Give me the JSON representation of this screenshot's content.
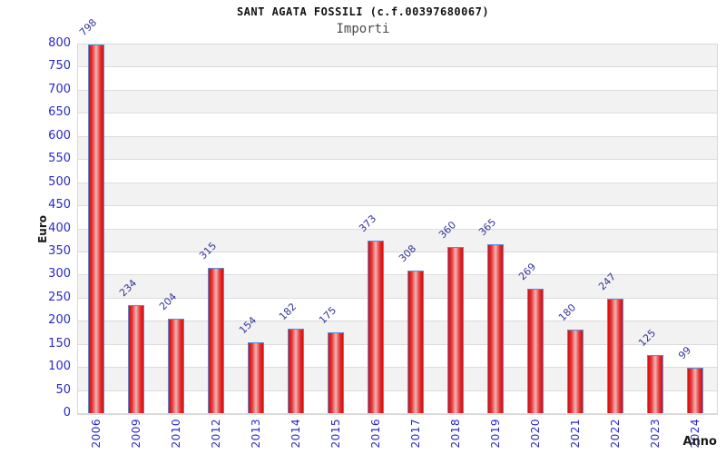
{
  "chart_data": {
    "type": "bar",
    "title": "SANT AGATA FOSSILI (c.f.00397680067)",
    "subtitle": "Importi",
    "xlabel": "Anno",
    "ylabel": "Euro",
    "categories": [
      "2006",
      "2009",
      "2010",
      "2012",
      "2013",
      "2014",
      "2015",
      "2016",
      "2017",
      "2018",
      "2019",
      "2020",
      "2021",
      "2022",
      "2023",
      "2024"
    ],
    "values": [
      798,
      234,
      204,
      315,
      154,
      182,
      175,
      373,
      308,
      360,
      365,
      269,
      180,
      247,
      125,
      99
    ],
    "ylim": [
      0,
      800
    ],
    "ytick_step": 50,
    "grid": "horizontal-bands-alternating",
    "legend": "none",
    "colors": {
      "bar_red_edge": "#d40e0e",
      "bar_red_mid": "#e83131",
      "bar_center_highlight": "#eeadad",
      "bar_border_blue": "#5b8dd5",
      "tick_label_blue": "#2727cf",
      "value_label_navy": "#333399",
      "band_gray": "#f2f2f2",
      "band_white": "#ffffff",
      "band_border": "#dcdcdc",
      "axis_label_black": "#1a1a1a"
    }
  }
}
